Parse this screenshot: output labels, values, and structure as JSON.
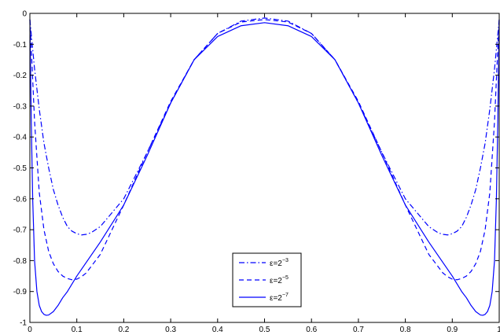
{
  "chart_data": {
    "type": "line",
    "title": "",
    "xlabel": "",
    "ylabel": "",
    "xlim": [
      0,
      1
    ],
    "ylim": [
      -1,
      0
    ],
    "xticks": [
      0,
      0.1,
      0.2,
      0.3,
      0.4,
      0.5,
      0.6,
      0.7,
      0.8,
      0.9,
      1
    ],
    "xtick_labels": [
      "0",
      "0.1",
      "0.2",
      "0.3",
      "0.4",
      "0.5",
      "0.6",
      "0.7",
      "0.8",
      "0.9",
      "1"
    ],
    "yticks": [
      0,
      -0.1,
      -0.2,
      -0.3,
      -0.4,
      -0.5,
      -0.6,
      -0.7,
      -0.8,
      -0.9,
      -1
    ],
    "ytick_labels": [
      "0",
      "-0.1",
      "-0.2",
      "-0.3",
      "-0.4",
      "-0.5",
      "-0.6",
      "-0.7",
      "-0.8",
      "-0.9",
      "-1"
    ],
    "grid": false,
    "legend_position": "bottom-center",
    "series": [
      {
        "name_base": "ε=2",
        "name_exp": "−3",
        "color": "#0000ff",
        "style": "dashdot",
        "x": [
          0,
          0.005,
          0.01,
          0.02,
          0.03,
          0.04,
          0.05,
          0.06,
          0.07,
          0.08,
          0.09,
          0.1,
          0.11,
          0.12,
          0.13,
          0.14,
          0.15,
          0.2,
          0.25,
          0.3,
          0.35,
          0.4,
          0.45,
          0.5,
          0.55,
          0.6,
          0.65,
          0.7,
          0.75,
          0.8,
          0.85,
          0.86,
          0.87,
          0.88,
          0.89,
          0.9,
          0.91,
          0.92,
          0.93,
          0.94,
          0.95,
          0.96,
          0.97,
          0.98,
          0.99,
          0.995,
          1
        ],
        "y": [
          -0.02,
          -0.1,
          -0.18,
          -0.31,
          -0.42,
          -0.5,
          -0.57,
          -0.62,
          -0.66,
          -0.69,
          -0.705,
          -0.713,
          -0.717,
          -0.715,
          -0.71,
          -0.7,
          -0.69,
          -0.6,
          -0.45,
          -0.29,
          -0.15,
          -0.065,
          -0.025,
          -0.015,
          -0.025,
          -0.065,
          -0.15,
          -0.29,
          -0.45,
          -0.6,
          -0.69,
          -0.7,
          -0.71,
          -0.715,
          -0.717,
          -0.713,
          -0.705,
          -0.69,
          -0.66,
          -0.62,
          -0.57,
          -0.5,
          -0.42,
          -0.31,
          -0.18,
          -0.1,
          -0.02
        ]
      },
      {
        "name_base": "ε=2",
        "name_exp": "−5",
        "color": "#0000ff",
        "style": "dashed",
        "x": [
          0,
          0.005,
          0.01,
          0.02,
          0.03,
          0.04,
          0.05,
          0.06,
          0.07,
          0.08,
          0.09,
          0.1,
          0.11,
          0.12,
          0.15,
          0.2,
          0.25,
          0.3,
          0.35,
          0.4,
          0.45,
          0.5,
          0.55,
          0.6,
          0.65,
          0.7,
          0.75,
          0.8,
          0.85,
          0.88,
          0.89,
          0.9,
          0.91,
          0.92,
          0.93,
          0.94,
          0.95,
          0.96,
          0.97,
          0.98,
          0.99,
          0.995,
          1
        ],
        "y": [
          -0.02,
          -0.18,
          -0.35,
          -0.58,
          -0.7,
          -0.77,
          -0.81,
          -0.835,
          -0.85,
          -0.858,
          -0.862,
          -0.86,
          -0.852,
          -0.84,
          -0.78,
          -0.62,
          -0.45,
          -0.285,
          -0.15,
          -0.065,
          -0.028,
          -0.02,
          -0.028,
          -0.065,
          -0.15,
          -0.285,
          -0.45,
          -0.62,
          -0.78,
          -0.84,
          -0.852,
          -0.86,
          -0.862,
          -0.858,
          -0.85,
          -0.835,
          -0.81,
          -0.77,
          -0.7,
          -0.58,
          -0.35,
          -0.18,
          -0.02
        ]
      },
      {
        "name_base": "ε=2",
        "name_exp": "−7",
        "color": "#0000ff",
        "style": "solid",
        "x": [
          0,
          0.003,
          0.006,
          0.01,
          0.015,
          0.02,
          0.025,
          0.03,
          0.035,
          0.04,
          0.05,
          0.06,
          0.07,
          0.08,
          0.1,
          0.15,
          0.2,
          0.25,
          0.3,
          0.35,
          0.4,
          0.45,
          0.5,
          0.55,
          0.6,
          0.65,
          0.7,
          0.75,
          0.8,
          0.85,
          0.9,
          0.92,
          0.93,
          0.94,
          0.95,
          0.96,
          0.965,
          0.97,
          0.975,
          0.98,
          0.985,
          0.99,
          0.994,
          0.997,
          1
        ],
        "y": [
          -0.02,
          -0.35,
          -0.6,
          -0.8,
          -0.9,
          -0.945,
          -0.965,
          -0.974,
          -0.977,
          -0.976,
          -0.965,
          -0.945,
          -0.92,
          -0.9,
          -0.85,
          -0.74,
          -0.62,
          -0.46,
          -0.29,
          -0.15,
          -0.075,
          -0.04,
          -0.03,
          -0.04,
          -0.075,
          -0.15,
          -0.29,
          -0.46,
          -0.62,
          -0.74,
          -0.85,
          -0.9,
          -0.92,
          -0.945,
          -0.965,
          -0.976,
          -0.977,
          -0.974,
          -0.965,
          -0.945,
          -0.9,
          -0.8,
          -0.6,
          -0.35,
          -0.02
        ]
      }
    ]
  }
}
